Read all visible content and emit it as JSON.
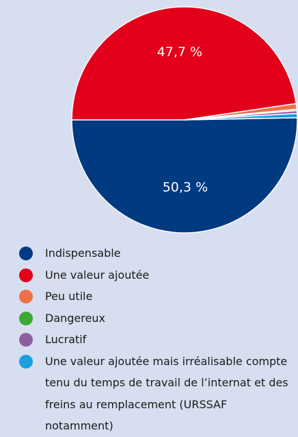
{
  "chart_data": {
    "type": "pie",
    "categories": [
      "Indispensable",
      "Une valeur ajoutée",
      "Peu utile",
      "Dangereux",
      "Lucratif",
      "Une valeur ajoutée mais irréalisable compte tenu du temps de travail de l’internat et des freins au remplacement (URSSAF notamment)"
    ],
    "values": [
      50.3,
      47.7,
      0.8,
      0.2,
      0.4,
      0.6
    ],
    "value_labels": [
      "50,3 %",
      "47,7 %",
      null,
      null,
      null,
      null
    ],
    "colors": [
      "#003a80",
      "#e2001a",
      "#ee7048",
      "#3aa935",
      "#8e5ea2",
      "#1a9ee0"
    ]
  }
}
